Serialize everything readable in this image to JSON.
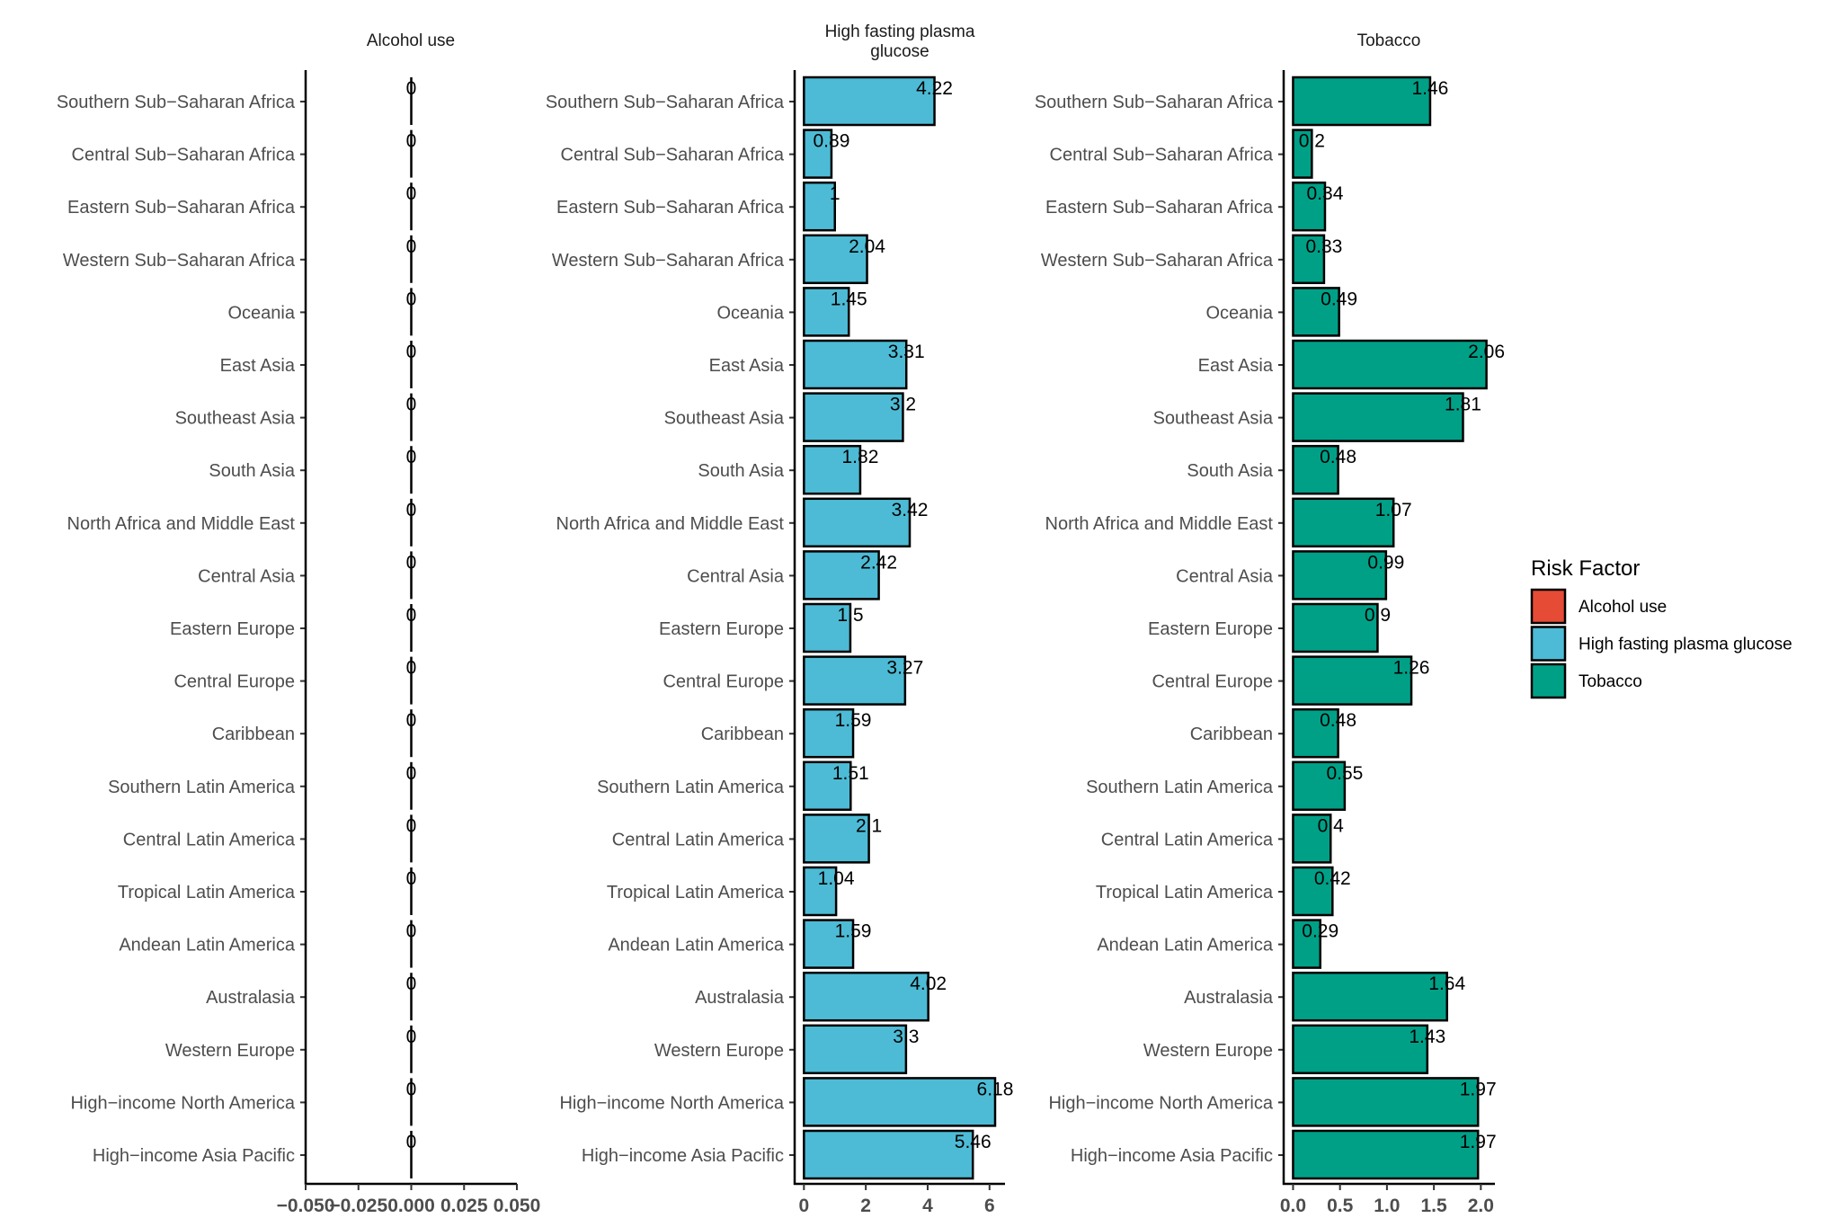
{
  "chart_data": {
    "type": "bar",
    "orientation": "horizontal",
    "categories": [
      "Southern Sub−Saharan Africa",
      "Central Sub−Saharan Africa",
      "Eastern Sub−Saharan Africa",
      "Western Sub−Saharan Africa",
      "Oceania",
      "East Asia",
      "Southeast Asia",
      "South Asia",
      "North Africa and Middle East",
      "Central Asia",
      "Eastern Europe",
      "Central Europe",
      "Caribbean",
      "Southern Latin America",
      "Central Latin America",
      "Tropical Latin America",
      "Andean Latin America",
      "Australasia",
      "Western Europe",
      "High−income North America",
      "High−income Asia Pacific"
    ],
    "panels": [
      {
        "title_lines": [
          "Alcohol use"
        ],
        "series": "Alcohol use",
        "color": "#E64B35",
        "values": [
          0,
          0,
          0,
          0,
          0,
          0,
          0,
          0,
          0,
          0,
          0,
          0,
          0,
          0,
          0,
          0,
          0,
          0,
          0,
          0,
          0
        ],
        "labels": [
          "0",
          "0",
          "0",
          "0",
          "0",
          "0",
          "0",
          "0",
          "0",
          "0",
          "0",
          "0",
          "0",
          "0",
          "0",
          "0",
          "0",
          "0",
          "0",
          "0",
          "0"
        ],
        "xlim": [
          -0.05,
          0.05
        ],
        "ticks": [
          -0.05,
          -0.025,
          0,
          0.025,
          0.05
        ],
        "tick_labels": [
          "−0.050",
          "−0.025",
          "0.000",
          "0.025",
          "0.050"
        ]
      },
      {
        "title_lines": [
          "High fasting plasma",
          "glucose"
        ],
        "series": "High fasting plasma glucose",
        "color": "#4DBBD5",
        "values": [
          4.22,
          0.89,
          1,
          2.04,
          1.45,
          3.31,
          3.2,
          1.82,
          3.42,
          2.42,
          1.5,
          3.27,
          1.59,
          1.51,
          2.1,
          1.04,
          1.59,
          4.02,
          3.3,
          6.18,
          5.46
        ],
        "labels": [
          "4.22",
          "0.89",
          "1",
          "2.04",
          "1.45",
          "3.31",
          "3.2",
          "1.82",
          "3.42",
          "2.42",
          "1.5",
          "3.27",
          "1.59",
          "1.51",
          "2.1",
          "1.04",
          "1.59",
          "4.02",
          "3.3",
          "6.18",
          "5.46"
        ],
        "xlim": [
          -0.3,
          6.5
        ],
        "ticks": [
          0,
          2,
          4,
          6
        ],
        "tick_labels": [
          "0",
          "2",
          "4",
          "6"
        ]
      },
      {
        "title_lines": [
          "Tobacco"
        ],
        "series": "Tobacco",
        "color": "#00A087",
        "values": [
          1.46,
          0.2,
          0.34,
          0.33,
          0.49,
          2.06,
          1.81,
          0.48,
          1.07,
          0.99,
          0.9,
          1.26,
          0.48,
          0.55,
          0.4,
          0.42,
          0.29,
          1.64,
          1.43,
          1.97,
          1.97
        ],
        "labels": [
          "1.46",
          "0.2",
          "0.34",
          "0.33",
          "0.49",
          "2.06",
          "1.81",
          "0.48",
          "1.07",
          "0.99",
          "0.9",
          "1.26",
          "0.48",
          "0.55",
          "0.4",
          "0.42",
          "0.29",
          "1.64",
          "1.43",
          "1.97",
          "1.97"
        ],
        "xlim": [
          -0.1,
          2.15
        ],
        "ticks": [
          0,
          0.5,
          1.0,
          1.5,
          2.0
        ],
        "tick_labels": [
          "0.0",
          "0.5",
          "1.0",
          "1.5",
          "2.0"
        ]
      }
    ],
    "legend": {
      "title": "Risk Factor",
      "position": "right",
      "entries": [
        {
          "label": "Alcohol use",
          "color": "#E64B35"
        },
        {
          "label": "High fasting plasma glucose",
          "color": "#4DBBD5"
        },
        {
          "label": "Tobacco",
          "color": "#00A087"
        }
      ]
    },
    "xlabel": "",
    "ylabel": "",
    "grid": false
  }
}
